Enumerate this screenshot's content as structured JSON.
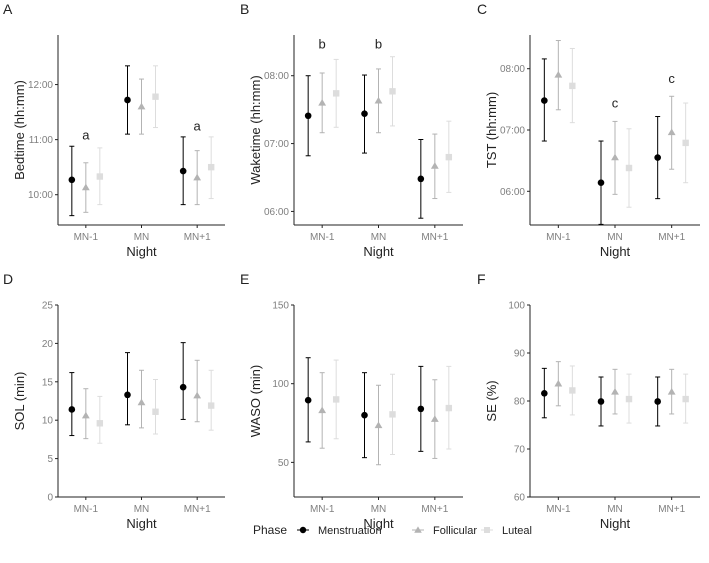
{
  "colors": {
    "Menstruation": "#000000",
    "Follicular": "#b3b3b3",
    "Luteal": "#dddddd",
    "axis": "#222222",
    "tick_text": "#7f7f7f"
  },
  "legend": {
    "title": "Phase",
    "position": "bottom",
    "items": [
      {
        "name": "Menstruation",
        "shape": "circle"
      },
      {
        "name": "Follicular",
        "shape": "triangle"
      },
      {
        "name": "Luteal",
        "shape": "square"
      }
    ]
  },
  "chart_data": [
    {
      "type": "errorbar-point",
      "panel": "A",
      "title": "",
      "xlabel": "Night",
      "ylabel": "Bedtime (hh:mm)",
      "categories": [
        "MN-1",
        "MN",
        "MN+1"
      ],
      "ylim": [
        9.45,
        12.9
      ],
      "yticks": [
        10,
        11,
        12
      ],
      "ytick_labels": [
        "10:00",
        "11:00",
        "12:00"
      ],
      "series": [
        {
          "name": "Menstruation",
          "values": [
            10.27,
            11.72,
            10.43
          ],
          "lower": [
            9.62,
            11.1,
            9.82
          ],
          "upper": [
            10.88,
            12.34,
            11.05
          ]
        },
        {
          "name": "Follicular",
          "values": [
            10.13,
            11.6,
            10.31
          ],
          "lower": [
            9.68,
            11.1,
            9.82
          ],
          "upper": [
            10.58,
            12.1,
            10.8
          ]
        },
        {
          "name": "Luteal",
          "values": [
            10.33,
            11.78,
            10.5
          ],
          "lower": [
            9.82,
            11.22,
            9.93
          ],
          "upper": [
            10.85,
            12.34,
            11.05
          ]
        }
      ],
      "annotations": [
        {
          "text": "a",
          "category": "MN-1",
          "y": 11.0
        },
        {
          "text": "a",
          "category": "MN+1",
          "y": 11.17
        }
      ]
    },
    {
      "type": "errorbar-point",
      "panel": "B",
      "title": "",
      "xlabel": "Night",
      "ylabel": "Waketime (hh:mm)",
      "categories": [
        "MN-1",
        "MN",
        "MN+1"
      ],
      "ylim": [
        5.8,
        8.6
      ],
      "yticks": [
        6,
        7,
        8
      ],
      "ytick_labels": [
        "06:00",
        "07:00",
        "08:00"
      ],
      "series": [
        {
          "name": "Menstruation",
          "values": [
            7.41,
            7.44,
            6.48
          ],
          "lower": [
            6.82,
            6.86,
            5.9
          ],
          "upper": [
            8.0,
            8.01,
            7.06
          ]
        },
        {
          "name": "Follicular",
          "values": [
            7.6,
            7.63,
            6.67
          ],
          "lower": [
            7.16,
            7.16,
            6.19
          ],
          "upper": [
            8.04,
            8.1,
            7.14
          ]
        },
        {
          "name": "Luteal",
          "values": [
            7.74,
            7.77,
            6.8
          ],
          "lower": [
            7.24,
            7.26,
            6.28
          ],
          "upper": [
            8.24,
            8.28,
            7.33
          ]
        }
      ],
      "annotations": [
        {
          "text": "b",
          "category": "MN-1",
          "y": 8.4
        },
        {
          "text": "b",
          "category": "MN",
          "y": 8.4
        }
      ]
    },
    {
      "type": "errorbar-point",
      "panel": "C",
      "title": "",
      "xlabel": "Night",
      "ylabel": "TST (hh:mm)",
      "categories": [
        "MN-1",
        "MN",
        "MN+1"
      ],
      "ylim": [
        5.45,
        8.55
      ],
      "yticks": [
        6,
        7,
        8
      ],
      "ytick_labels": [
        "06:00",
        "07:00",
        "08:00"
      ],
      "series": [
        {
          "name": "Menstruation",
          "values": [
            7.48,
            6.14,
            6.55
          ],
          "lower": [
            6.82,
            5.46,
            5.88
          ],
          "upper": [
            8.16,
            6.82,
            7.22
          ]
        },
        {
          "name": "Follicular",
          "values": [
            7.9,
            6.55,
            6.96
          ],
          "lower": [
            7.33,
            5.95,
            6.36
          ],
          "upper": [
            8.46,
            7.14,
            7.55
          ]
        },
        {
          "name": "Luteal",
          "values": [
            7.72,
            6.38,
            6.79
          ],
          "lower": [
            7.12,
            5.74,
            6.14
          ],
          "upper": [
            8.33,
            7.02,
            7.44
          ]
        }
      ],
      "annotations": [
        {
          "text": "c",
          "category": "MN",
          "y": 7.37
        },
        {
          "text": "c",
          "category": "MN+1",
          "y": 7.77
        }
      ]
    },
    {
      "type": "errorbar-point",
      "panel": "D",
      "title": "",
      "xlabel": "Night",
      "ylabel": "SOL (min)",
      "categories": [
        "MN-1",
        "MN",
        "MN+1"
      ],
      "ylim": [
        0,
        25
      ],
      "yticks": [
        0,
        5,
        10,
        15,
        20,
        25
      ],
      "ytick_labels": [
        "0",
        "5",
        "10",
        "15",
        "20",
        "25"
      ],
      "series": [
        {
          "name": "Menstruation",
          "values": [
            11.4,
            13.3,
            14.3
          ],
          "lower": [
            8.0,
            9.4,
            10.1
          ],
          "upper": [
            16.2,
            18.8,
            20.1
          ]
        },
        {
          "name": "Follicular",
          "values": [
            10.6,
            12.3,
            13.2
          ],
          "lower": [
            7.6,
            9.0,
            9.8
          ],
          "upper": [
            14.1,
            16.5,
            17.8
          ]
        },
        {
          "name": "Luteal",
          "values": [
            9.6,
            11.1,
            11.9
          ],
          "lower": [
            7.0,
            8.2,
            8.7
          ],
          "upper": [
            13.1,
            15.3,
            16.5
          ]
        }
      ],
      "annotations": []
    },
    {
      "type": "errorbar-point",
      "panel": "E",
      "title": "",
      "xlabel": "Night",
      "ylabel": "WASO (min)",
      "categories": [
        "MN-1",
        "MN",
        "MN+1"
      ],
      "ylim": [
        28,
        150
      ],
      "yticks": [
        50,
        100,
        150
      ],
      "ytick_labels": [
        "50",
        "100",
        "150"
      ],
      "series": [
        {
          "name": "Menstruation",
          "values": [
            89.5,
            80.0,
            84.0
          ],
          "lower": [
            63.0,
            53.0,
            57.0
          ],
          "upper": [
            116.5,
            107.0,
            111.0
          ]
        },
        {
          "name": "Follicular",
          "values": [
            83.0,
            73.5,
            77.5
          ],
          "lower": [
            59.0,
            48.5,
            52.5
          ],
          "upper": [
            107.0,
            99.0,
            102.5
          ]
        },
        {
          "name": "Luteal",
          "values": [
            90.0,
            80.5,
            84.5
          ],
          "lower": [
            65.0,
            55.0,
            58.5
          ],
          "upper": [
            115.0,
            106.0,
            111.0
          ]
        }
      ],
      "annotations": []
    },
    {
      "type": "errorbar-point",
      "panel": "F",
      "title": "",
      "xlabel": "Night",
      "ylabel": "SE (%)",
      "categories": [
        "MN-1",
        "MN",
        "MN+1"
      ],
      "ylim": [
        60,
        100
      ],
      "yticks": [
        60,
        70,
        80,
        90,
        100
      ],
      "ytick_labels": [
        "60",
        "70",
        "80",
        "90",
        "100"
      ],
      "series": [
        {
          "name": "Menstruation",
          "values": [
            81.6,
            79.9,
            79.9
          ],
          "lower": [
            76.5,
            74.8,
            74.8
          ],
          "upper": [
            86.8,
            85.0,
            85.0
          ]
        },
        {
          "name": "Follicular",
          "values": [
            83.6,
            81.9,
            81.9
          ],
          "lower": [
            79.0,
            77.3,
            77.3
          ],
          "upper": [
            88.2,
            86.6,
            86.6
          ]
        },
        {
          "name": "Luteal",
          "values": [
            82.2,
            80.4,
            80.4
          ],
          "lower": [
            77.1,
            75.4,
            75.4
          ],
          "upper": [
            87.3,
            85.6,
            85.6
          ]
        }
      ],
      "annotations": []
    }
  ]
}
